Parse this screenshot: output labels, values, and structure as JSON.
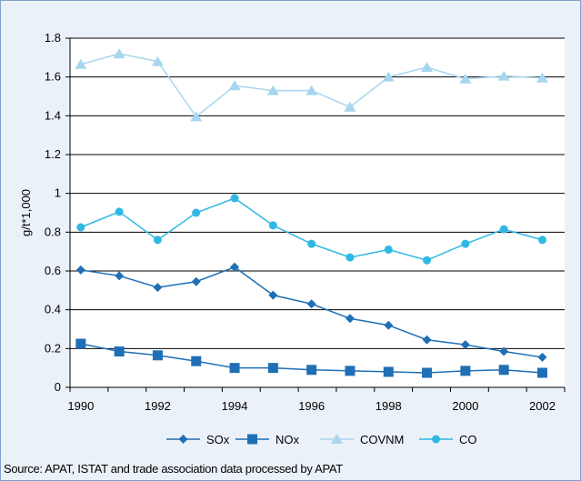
{
  "chart_data": {
    "type": "line",
    "ylabel": "g/t*1,000",
    "xlabel": "",
    "ylim": [
      0,
      1.8
    ],
    "yticks": [
      "0",
      "0.2",
      "0.4",
      "0.6",
      "0.8",
      "1",
      "1.2",
      "1.4",
      "1.6",
      "1.8"
    ],
    "xtick_labels": [
      "1990",
      "1992",
      "1994",
      "1996",
      "1998",
      "2000",
      "2002"
    ],
    "grid": "horizontal",
    "legend": "bottom",
    "x": [
      1990,
      1991,
      1992,
      1993,
      1994,
      1995,
      1996,
      1997,
      1998,
      1999,
      2000,
      2001,
      2002
    ],
    "series": [
      {
        "name": "SOx",
        "marker": "diamond",
        "color": "#1f6fb6",
        "values": [
          0.605,
          0.575,
          0.515,
          0.545,
          0.62,
          0.475,
          0.43,
          0.355,
          0.32,
          0.245,
          0.22,
          0.185,
          0.155
        ]
      },
      {
        "name": "NOx",
        "marker": "square",
        "color": "#1f6fb6",
        "values": [
          0.225,
          0.185,
          0.165,
          0.135,
          0.1,
          0.1,
          0.09,
          0.085,
          0.08,
          0.075,
          0.085,
          0.09,
          0.075
        ]
      },
      {
        "name": "COVNM",
        "marker": "triangle",
        "color": "#a8d6ee",
        "values": [
          1.665,
          1.72,
          1.68,
          1.395,
          1.555,
          1.53,
          1.53,
          1.445,
          1.6,
          1.65,
          1.59,
          1.605,
          1.595
        ]
      },
      {
        "name": "CO",
        "marker": "circle",
        "color": "#2fb8e4",
        "values": [
          0.825,
          0.905,
          0.76,
          0.9,
          0.975,
          0.835,
          0.74,
          0.67,
          0.71,
          0.655,
          0.74,
          0.815,
          0.76
        ]
      }
    ]
  },
  "source_text": "Source: APAT, ISTAT and trade association data processed by APAT"
}
